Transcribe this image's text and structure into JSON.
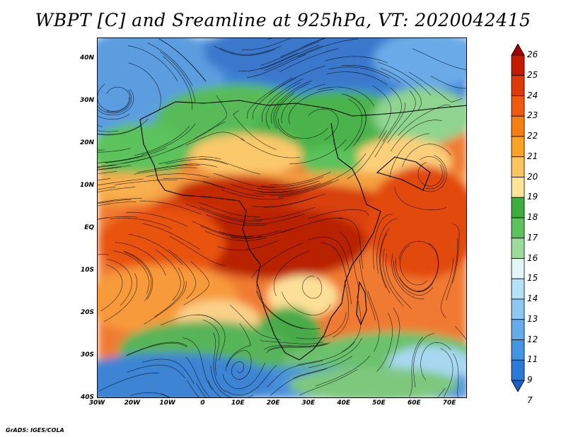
{
  "title": "WBPT [C] and Sreamline at 925hPa, VT: 2020042415",
  "credit": "GrADS: IGES/COLA",
  "map": {
    "lon_range": [
      -30,
      75
    ],
    "lat_range": [
      -40,
      45
    ],
    "lat_ticks": [
      {
        "value": 40,
        "label": "40N"
      },
      {
        "value": 30,
        "label": "30N"
      },
      {
        "value": 20,
        "label": "20N"
      },
      {
        "value": 10,
        "label": "10N"
      },
      {
        "value": 0,
        "label": "EQ"
      },
      {
        "value": -10,
        "label": "10S"
      },
      {
        "value": -20,
        "label": "20S"
      },
      {
        "value": -30,
        "label": "30S"
      },
      {
        "value": -40,
        "label": "40S"
      }
    ],
    "lon_ticks": [
      {
        "value": -30,
        "label": "30W"
      },
      {
        "value": -20,
        "label": "20W"
      },
      {
        "value": -10,
        "label": "10W"
      },
      {
        "value": 0,
        "label": "0"
      },
      {
        "value": 10,
        "label": "10E"
      },
      {
        "value": 20,
        "label": "20E"
      },
      {
        "value": 30,
        "label": "30E"
      },
      {
        "value": 40,
        "label": "40E"
      },
      {
        "value": 50,
        "label": "50E"
      },
      {
        "value": 60,
        "label": "60E"
      },
      {
        "value": 70,
        "label": "70E"
      }
    ]
  },
  "colorbar": {
    "labels": [
      "26",
      "25",
      "24",
      "23",
      "22",
      "21",
      "20",
      "19",
      "18",
      "17",
      "16",
      "15",
      "14",
      "13",
      "12",
      "11",
      "9",
      "7"
    ],
    "colors": [
      "#a00000",
      "#c41a00",
      "#dd3a06",
      "#ef5a10",
      "#f87e14",
      "#fba324",
      "#fcc45c",
      "#fde498",
      "#3dae3d",
      "#5cc25c",
      "#9bdc9b",
      "#e2f6f6",
      "#b4e0f8",
      "#8cc8f2",
      "#64acec",
      "#4494e4",
      "#2a7ad8",
      "#1a5fc8"
    ]
  }
}
